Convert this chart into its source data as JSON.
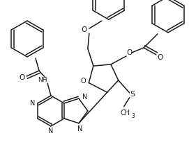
{
  "background_color": "#ffffff",
  "line_color": "#1a1a1a",
  "line_width": 1.1,
  "figsize": [
    2.71,
    2.15
  ],
  "dpi": 100,
  "xlim": [
    0,
    271
  ],
  "ylim": [
    0,
    215
  ]
}
